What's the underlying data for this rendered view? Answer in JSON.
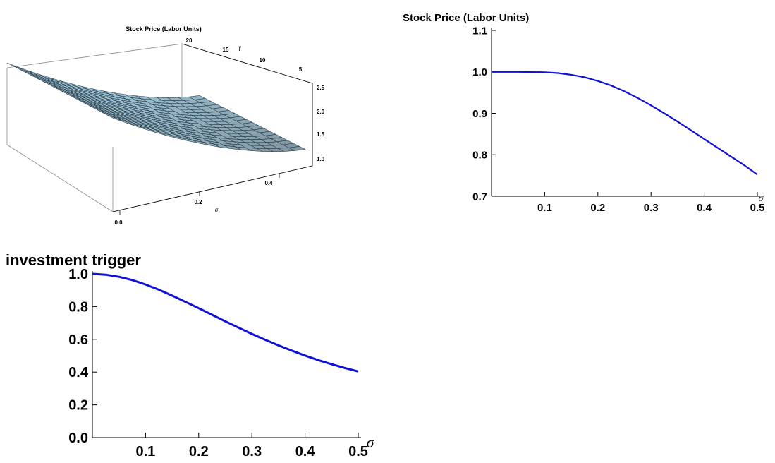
{
  "chart_data": [
    {
      "type": "surface",
      "title": "Stock Price (Labor Units)",
      "x_axis": {
        "label": "σ",
        "range": [
          0,
          0.5
        ],
        "ticks": [
          "0.0",
          "0.2",
          "0.4"
        ]
      },
      "y_axis": {
        "label": "γ",
        "range": [
          2,
          20
        ],
        "ticks": [
          "20",
          "15",
          "10",
          "5"
        ]
      },
      "z_axis": {
        "label": "",
        "range": [
          0.8,
          2.6
        ],
        "ticks": [
          "2.5",
          "2.0",
          "1.5",
          "1.0"
        ]
      },
      "surface_color": "#a9dcf5",
      "mesh_color": "#1f2a33",
      "corner_values": {
        "sigma0_gamma_low": 0.95,
        "sigma0_gamma_high": 2.55,
        "sigma_max_gamma_low": 0.88,
        "sigma_max_gamma_high": 2.45
      }
    },
    {
      "type": "line",
      "title": "Stock Price (Labor Units)",
      "xlabel": "σ",
      "ylabel": "",
      "xlim": [
        0,
        0.5
      ],
      "ylim": [
        0.7,
        1.1
      ],
      "xticks": [
        "0.1",
        "0.2",
        "0.3",
        "0.4",
        "0.5"
      ],
      "yticks": [
        "0.7",
        "0.8",
        "0.9",
        "1.0",
        "1.1"
      ],
      "color": "#1010d8",
      "x": [
        0,
        0.05,
        0.1,
        0.125,
        0.15,
        0.175,
        0.2,
        0.225,
        0.25,
        0.275,
        0.3,
        0.325,
        0.35,
        0.375,
        0.4,
        0.425,
        0.45,
        0.475,
        0.5
      ],
      "y": [
        1.0,
        1.0,
        0.999,
        0.997,
        0.993,
        0.987,
        0.978,
        0.967,
        0.953,
        0.937,
        0.919,
        0.9,
        0.88,
        0.859,
        0.838,
        0.817,
        0.796,
        0.775,
        0.752
      ]
    },
    {
      "type": "line",
      "title": "investment trigger",
      "xlabel": "σ",
      "ylabel": "",
      "xlim": [
        0,
        0.5
      ],
      "ylim": [
        0,
        1.0
      ],
      "xticks": [
        "0.1",
        "0.2",
        "0.3",
        "0.4",
        "0.5"
      ],
      "yticks": [
        "0.0",
        "0.2",
        "0.4",
        "0.6",
        "0.8",
        "1.0"
      ],
      "color": "#1010d8",
      "x": [
        0,
        0.025,
        0.05,
        0.075,
        0.1,
        0.125,
        0.15,
        0.175,
        0.2,
        0.225,
        0.25,
        0.275,
        0.3,
        0.325,
        0.35,
        0.375,
        0.4,
        0.425,
        0.45,
        0.475,
        0.5
      ],
      "y": [
        1.0,
        0.995,
        0.982,
        0.962,
        0.935,
        0.903,
        0.867,
        0.829,
        0.79,
        0.75,
        0.71,
        0.671,
        0.633,
        0.597,
        0.563,
        0.531,
        0.501,
        0.473,
        0.448,
        0.425,
        0.404
      ]
    }
  ]
}
